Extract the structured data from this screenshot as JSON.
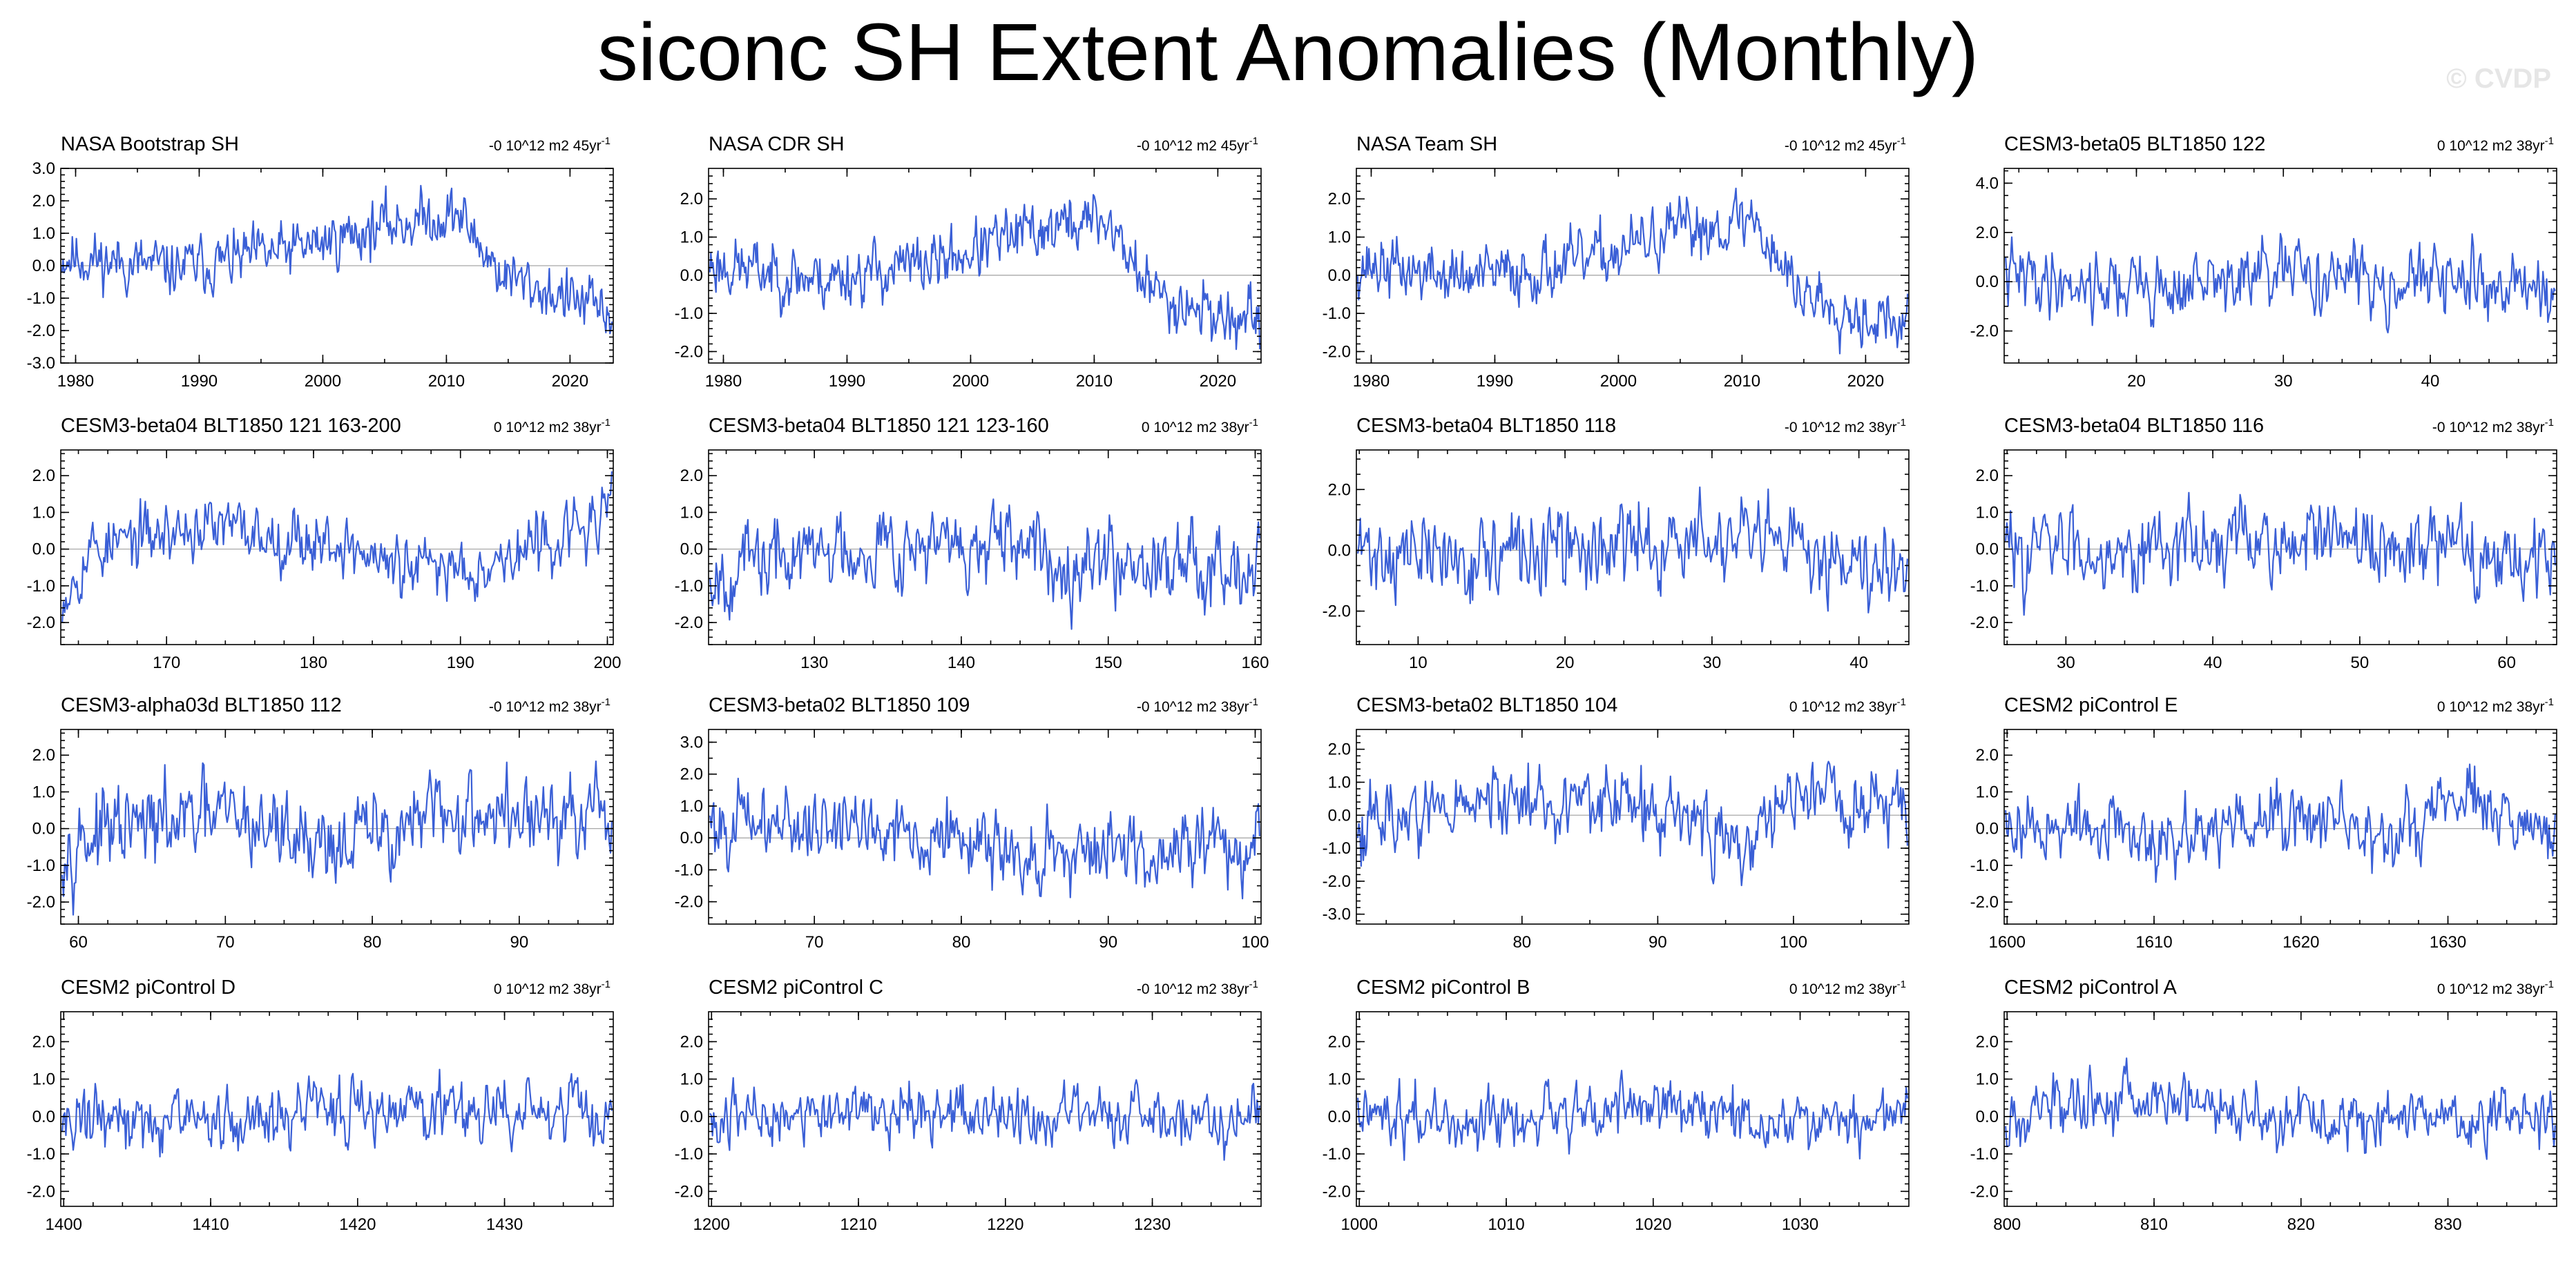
{
  "title": "siconc SH Extent Anomalies (Monthly)",
  "watermark": "© CVDP",
  "colors": {
    "line": "#3a5fd6",
    "zero": "#a8a8a8",
    "frame": "#000000"
  },
  "chart_data": [
    {
      "type": "line",
      "title": "NASA Bootstrap SH",
      "trend_value": "-0",
      "trend_units": "10^12 m2 45yr",
      "trend_exponent": "-1",
      "xlim": [
        1978.8,
        2023.5
      ],
      "ylim": [
        -3,
        3
      ],
      "xticks": [
        1980,
        1990,
        2000,
        2010,
        2020
      ],
      "yticks": [
        "3.0",
        "2.0",
        "1.0",
        "0.0",
        "-1.0",
        "-2.0",
        "-3.0"
      ],
      "profile": [
        [
          0,
          0.3
        ],
        [
          0.2,
          -0.1
        ],
        [
          0.4,
          0.4
        ],
        [
          0.6,
          1.3
        ],
        [
          0.72,
          1.6
        ],
        [
          0.8,
          -0.3
        ],
        [
          1,
          -1.5
        ]
      ],
      "noise": 0.55,
      "seed": 11
    },
    {
      "type": "line",
      "title": "NASA CDR SH",
      "trend_value": "-0",
      "trend_units": "10^12 m2 45yr",
      "trend_exponent": "-1",
      "xlim": [
        1978.8,
        2023.5
      ],
      "ylim": [
        -2.3,
        2.8
      ],
      "xticks": [
        1980,
        1990,
        2000,
        2010,
        2020
      ],
      "yticks": [
        "2.0",
        "1.0",
        "0.0",
        "-1.0",
        "-2.0"
      ],
      "profile": [
        [
          0,
          0.3
        ],
        [
          0.2,
          -0.1
        ],
        [
          0.4,
          0.3
        ],
        [
          0.6,
          1.2
        ],
        [
          0.72,
          1.5
        ],
        [
          0.8,
          -0.4
        ],
        [
          1,
          -1.4
        ]
      ],
      "noise": 0.5,
      "seed": 23
    },
    {
      "type": "line",
      "title": "NASA Team SH",
      "trend_value": "-0",
      "trend_units": "10^12 m2 45yr",
      "trend_exponent": "-1",
      "xlim": [
        1978.8,
        2023.5
      ],
      "ylim": [
        -2.3,
        2.8
      ],
      "xticks": [
        1980,
        1990,
        2000,
        2010,
        2020
      ],
      "yticks": [
        "2.0",
        "1.0",
        "0.0",
        "-1.0",
        "-2.0"
      ],
      "profile": [
        [
          0,
          0.3
        ],
        [
          0.2,
          -0.1
        ],
        [
          0.4,
          0.3
        ],
        [
          0.6,
          1.2
        ],
        [
          0.72,
          1.5
        ],
        [
          0.8,
          -0.4
        ],
        [
          1,
          -1.4
        ]
      ],
      "noise": 0.5,
      "seed": 37
    },
    {
      "type": "line",
      "title": "CESM3-beta05 BLT1850 122",
      "trend_value": "0",
      "trend_units": "10^12 m2 38yr",
      "trend_exponent": "-1",
      "xlim": [
        11,
        48.6
      ],
      "ylim": [
        -3.3,
        4.6
      ],
      "xticks": [
        20,
        30,
        40
      ],
      "yticks": [
        "4.0",
        "2.0",
        "0.0",
        "-2.0"
      ],
      "profile": [
        [
          0,
          0.2
        ],
        [
          0.3,
          -0.3
        ],
        [
          0.5,
          0.3
        ],
        [
          0.75,
          0
        ],
        [
          1,
          -0.2
        ]
      ],
      "noise": 0.9,
      "seed": 41
    },
    {
      "type": "line",
      "title": "CESM3-beta04 BLT1850 121 163-200",
      "trend_value": "0",
      "trend_units": "10^12 m2 38yr",
      "trend_exponent": "-1",
      "xlim": [
        162.8,
        200.4
      ],
      "ylim": [
        -2.6,
        2.7
      ],
      "xticks": [
        170,
        180,
        190,
        200
      ],
      "yticks": [
        "2.0",
        "1.0",
        "0.0",
        "-1.0",
        "-2.0"
      ],
      "profile": [
        [
          0,
          -1.2
        ],
        [
          0.05,
          0
        ],
        [
          0.25,
          0.6
        ],
        [
          0.5,
          0.2
        ],
        [
          0.62,
          -0.6
        ],
        [
          0.8,
          -0.3
        ],
        [
          1,
          0.9
        ]
      ],
      "noise": 0.55,
      "seed": 53
    },
    {
      "type": "line",
      "title": "CESM3-beta04 BLT1850 121 123-160",
      "trend_value": "0",
      "trend_units": "10^12 m2 38yr",
      "trend_exponent": "-1",
      "xlim": [
        122.8,
        160.4
      ],
      "ylim": [
        -2.6,
        2.7
      ],
      "xticks": [
        130,
        140,
        150,
        160
      ],
      "yticks": [
        "2.0",
        "1.0",
        "0.0",
        "-1.0",
        "-2.0"
      ],
      "profile": [
        [
          0,
          -0.6
        ],
        [
          0.3,
          0.2
        ],
        [
          0.6,
          -0.2
        ],
        [
          1,
          -0.3
        ]
      ],
      "noise": 0.7,
      "seed": 67
    },
    {
      "type": "line",
      "title": "CESM3-beta04 BLT1850 118",
      "trend_value": "-0",
      "trend_units": "10^12 m2 38yr",
      "trend_exponent": "-1",
      "xlim": [
        5.8,
        43.4
      ],
      "ylim": [
        -3.1,
        3.3
      ],
      "xticks": [
        10,
        20,
        30,
        40
      ],
      "yticks": [
        "2.0",
        "0.0",
        "-2.0"
      ],
      "profile": [
        [
          0,
          0
        ],
        [
          0.2,
          -0.3
        ],
        [
          0.6,
          0.3
        ],
        [
          1,
          -0.3
        ]
      ],
      "noise": 0.9,
      "seed": 71
    },
    {
      "type": "line",
      "title": "CESM3-beta04 BLT1850 116",
      "trend_value": "-0",
      "trend_units": "10^12 m2 38yr",
      "trend_exponent": "-1",
      "xlim": [
        25.8,
        63.4
      ],
      "ylim": [
        -2.6,
        2.7
      ],
      "xticks": [
        30,
        40,
        50,
        60
      ],
      "yticks": [
        "2.0",
        "1.0",
        "0.0",
        "-1.0",
        "-2.0"
      ],
      "profile": [
        [
          0,
          0
        ],
        [
          0.5,
          0.2
        ],
        [
          1,
          -0.2
        ]
      ],
      "noise": 0.7,
      "seed": 83
    },
    {
      "type": "line",
      "title": "CESM3-alpha03d BLT1850 112",
      "trend_value": "-0",
      "trend_units": "10^12 m2 38yr",
      "trend_exponent": "-1",
      "xlim": [
        58.8,
        96.4
      ],
      "ylim": [
        -2.6,
        2.7
      ],
      "xticks": [
        60,
        70,
        80,
        90
      ],
      "yticks": [
        "2.0",
        "1.0",
        "0.0",
        "-1.0",
        "-2.0"
      ],
      "profile": [
        [
          0,
          -0.3
        ],
        [
          0.3,
          0.3
        ],
        [
          0.5,
          -0.4
        ],
        [
          0.75,
          0.5
        ],
        [
          1,
          0
        ]
      ],
      "noise": 0.75,
      "seed": 97
    },
    {
      "type": "line",
      "title": "CESM3-beta02 BLT1850 109",
      "trend_value": "-0",
      "trend_units": "10^12 m2 38yr",
      "trend_exponent": "-1",
      "xlim": [
        62.8,
        100.4
      ],
      "ylim": [
        -2.7,
        3.4
      ],
      "xticks": [
        70,
        80,
        90,
        100
      ],
      "yticks": [
        "3.0",
        "2.0",
        "1.0",
        "0.0",
        "-1.0",
        "-2.0"
      ],
      "profile": [
        [
          0,
          0.5
        ],
        [
          0.3,
          0.4
        ],
        [
          0.6,
          -0.6
        ],
        [
          1,
          0
        ]
      ],
      "noise": 0.75,
      "seed": 101
    },
    {
      "type": "line",
      "title": "CESM3-beta02 BLT1850 104",
      "trend_value": "0",
      "trend_units": "10^12 m2 38yr",
      "trend_exponent": "-1",
      "xlim": [
        67.8,
        108.5
      ],
      "ylim": [
        -3.3,
        2.6
      ],
      "xticks": [
        80,
        90,
        100
      ],
      "yticks": [
        "2.0",
        "1.0",
        "0.0",
        "-1.0",
        "-2.0",
        "-3.0"
      ],
      "profile": [
        [
          0,
          -0.2
        ],
        [
          0.3,
          0.5
        ],
        [
          0.55,
          0.2
        ],
        [
          0.7,
          -1
        ],
        [
          0.8,
          0.7
        ],
        [
          1,
          0.3
        ]
      ],
      "noise": 0.7,
      "seed": 113
    },
    {
      "type": "line",
      "title": "CESM2 piControl E",
      "trend_value": "0",
      "trend_units": "10^12 m2 38yr",
      "trend_exponent": "-1",
      "xlim": [
        1599.8,
        1637.4
      ],
      "ylim": [
        -2.6,
        2.7
      ],
      "xticks": [
        1600,
        1610,
        1620,
        1630
      ],
      "yticks": [
        "2.0",
        "1.0",
        "0.0",
        "-1.0",
        "-2.0"
      ],
      "profile": [
        [
          0,
          0.2
        ],
        [
          0.3,
          -0.3
        ],
        [
          0.5,
          0.4
        ],
        [
          0.7,
          -0.3
        ],
        [
          0.85,
          0.8
        ],
        [
          1,
          -0.3
        ]
      ],
      "noise": 0.6,
      "seed": 127
    },
    {
      "type": "line",
      "title": "CESM2 piControl D",
      "trend_value": "0",
      "trend_units": "10^12 m2 38yr",
      "trend_exponent": "-1",
      "xlim": [
        1399.8,
        1437.4
      ],
      "ylim": [
        -2.4,
        2.8
      ],
      "xticks": [
        1400,
        1410,
        1420,
        1430
      ],
      "yticks": [
        "2.0",
        "1.0",
        "0.0",
        "-1.0",
        "-2.0"
      ],
      "profile": [
        [
          0,
          0
        ],
        [
          0.3,
          -0.2
        ],
        [
          0.5,
          0.3
        ],
        [
          1,
          0
        ]
      ],
      "noise": 0.55,
      "seed": 131
    },
    {
      "type": "line",
      "title": "CESM2 piControl C",
      "trend_value": "-0",
      "trend_units": "10^12 m2 38yr",
      "trend_exponent": "-1",
      "xlim": [
        1199.8,
        1237.4
      ],
      "ylim": [
        -2.4,
        2.8
      ],
      "xticks": [
        1200,
        1210,
        1220,
        1230
      ],
      "yticks": [
        "2.0",
        "1.0",
        "0.0",
        "-1.0",
        "-2.0"
      ],
      "profile": [
        [
          0,
          0
        ],
        [
          0.5,
          0.1
        ],
        [
          1,
          -0.1
        ]
      ],
      "noise": 0.5,
      "seed": 137
    },
    {
      "type": "line",
      "title": "CESM2 piControl B",
      "trend_value": "0",
      "trend_units": "10^12 m2 38yr",
      "trend_exponent": "-1",
      "xlim": [
        999.8,
        1037.4
      ],
      "ylim": [
        -2.4,
        2.8
      ],
      "xticks": [
        1000,
        1010,
        1020,
        1030
      ],
      "yticks": [
        "2.0",
        "1.0",
        "0.0",
        "-1.0",
        "-2.0"
      ],
      "profile": [
        [
          0,
          0.2
        ],
        [
          0.3,
          -0.3
        ],
        [
          0.55,
          0.4
        ],
        [
          0.8,
          -0.3
        ],
        [
          1,
          0.3
        ]
      ],
      "noise": 0.5,
      "seed": 149
    },
    {
      "type": "line",
      "title": "CESM2 piControl A",
      "trend_value": "0",
      "trend_units": "10^12 m2 38yr",
      "trend_exponent": "-1",
      "xlim": [
        799.8,
        837.4
      ],
      "ylim": [
        -2.4,
        2.8
      ],
      "xticks": [
        800,
        810,
        820,
        830
      ],
      "yticks": [
        "2.0",
        "1.0",
        "0.0",
        "-1.0",
        "-2.0"
      ],
      "profile": [
        [
          0,
          0
        ],
        [
          0.25,
          0.6
        ],
        [
          0.5,
          0
        ],
        [
          1,
          0
        ]
      ],
      "noise": 0.5,
      "seed": 157
    }
  ]
}
